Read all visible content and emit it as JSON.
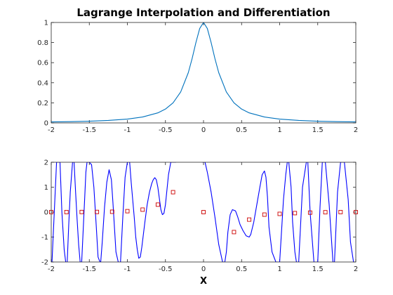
{
  "chart_data": [
    {
      "type": "line",
      "title": "Lagrange Interpolation and Differentiation",
      "xlabel": "",
      "ylabel": "",
      "xlim": [
        -2,
        2
      ],
      "ylim": [
        0,
        1
      ],
      "xticks": [
        -2,
        -1.5,
        -1,
        -0.5,
        0,
        0.5,
        1,
        1.5,
        2
      ],
      "xtick_labels": [
        "-2",
        "-1.5",
        "-1",
        "-0.5",
        "0",
        "0.5",
        "1",
        "1.5",
        "2"
      ],
      "yticks": [
        0,
        0.2,
        0.4,
        0.6,
        0.8,
        1
      ],
      "ytick_labels": [
        "0",
        "0.2",
        "0.4",
        "0.6",
        "0.8",
        "1"
      ],
      "series": [
        {
          "color": "#0072bd",
          "x": [
            -2,
            -1.75,
            -1.5,
            -1.25,
            -1,
            -0.8,
            -0.6,
            -0.5,
            -0.4,
            -0.3,
            -0.2,
            -0.15,
            -0.1,
            -0.05,
            0,
            0.05,
            0.1,
            0.15,
            0.2,
            0.3,
            0.4,
            0.5,
            0.6,
            0.8,
            1,
            1.25,
            1.5,
            1.75,
            2
          ],
          "y": [
            0.01,
            0.013,
            0.017,
            0.025,
            0.038,
            0.059,
            0.1,
            0.138,
            0.2,
            0.308,
            0.5,
            0.64,
            0.8,
            0.94,
            1,
            0.94,
            0.8,
            0.64,
            0.5,
            0.308,
            0.2,
            0.138,
            0.1,
            0.059,
            0.038,
            0.025,
            0.017,
            0.013,
            0.01
          ]
        }
      ],
      "grid": false
    },
    {
      "type": "line",
      "title": "",
      "xlabel": "X",
      "ylabel": "",
      "xlim": [
        -2,
        2
      ],
      "ylim": [
        -2,
        2
      ],
      "xticks": [
        -2,
        -1.5,
        -1,
        -0.5,
        0,
        0.5,
        1,
        1.5,
        2
      ],
      "xtick_labels": [
        "-2",
        "-1.5",
        "-1",
        "-0.5",
        "0",
        "0.5",
        "1",
        "1.5",
        "2"
      ],
      "yticks": [
        -2,
        -1,
        0,
        1,
        2
      ],
      "ytick_labels": [
        "-2",
        "-1",
        "0",
        "1",
        "2"
      ],
      "series": [
        {
          "color": "#0000ff",
          "style": "line",
          "x": [
            -1.99,
            -1.93,
            -1.885,
            -1.86,
            -1.83,
            -1.81,
            -1.79,
            -1.77,
            -1.75,
            -1.73,
            -1.72,
            -1.7,
            -1.68,
            -1.66,
            -1.64,
            -1.62,
            -1.6,
            -1.58,
            -1.56,
            -1.545,
            -1.53,
            -1.5,
            -1.47,
            -1.44,
            -1.41,
            -1.385,
            -1.36,
            -1.35,
            -1.33,
            -1.3,
            -1.27,
            -1.24,
            -1.21,
            -1.19,
            -1.17,
            -1.15,
            -1.12,
            -1.09,
            -1.06,
            -1.03,
            -1.0,
            -0.97,
            -0.95,
            -0.93,
            -0.91,
            -0.89,
            -0.87,
            -0.85,
            -0.83,
            -0.81,
            -0.79,
            -0.77,
            -0.74,
            -0.71,
            -0.68,
            -0.66,
            -0.64,
            -0.62,
            -0.6,
            -0.58,
            -0.56,
            -0.54,
            -0.52,
            -0.5,
            -0.48,
            -0.46,
            -0.43,
            -0.41,
            -0.4,
            -0.38,
            -0.36
          ],
          "y": [
            -2,
            2,
            2,
            0,
            -1.5,
            -2,
            -2,
            -0.5,
            0.8,
            1.6,
            2,
            2,
            0.8,
            -0.3,
            -1.3,
            -2,
            -2,
            -0.7,
            0.6,
            1.6,
            2,
            2,
            1.9,
            1.0,
            -0.5,
            -1.8,
            -2,
            -2,
            -1.2,
            0.2,
            1.2,
            1.7,
            1.3,
            0.4,
            -0.6,
            -1.6,
            -2,
            -2,
            -0.2,
            1.4,
            2,
            2,
            1.2,
            0.5,
            -0.2,
            -1.0,
            -1.5,
            -1.85,
            -1.8,
            -1.4,
            -0.9,
            -0.4,
            0.3,
            0.8,
            1.15,
            1.3,
            1.38,
            1.3,
            1.0,
            0.55,
            0.1,
            -0.1,
            -0.05,
            0.3,
            0.9,
            1.5,
            2,
            2,
            2,
            2,
            2
          ]
        },
        {
          "color": "#0000ff",
          "style": "line",
          "x": [
            -0.02,
            0.0,
            0.02,
            0.05,
            0.1,
            0.15,
            0.2,
            0.25,
            0.28,
            0.3,
            0.32,
            0.35,
            0.38,
            0.42,
            0.45,
            0.48,
            0.52,
            0.56,
            0.6,
            0.62,
            0.66,
            0.7,
            0.74,
            0.77,
            0.8,
            0.82,
            0.84,
            0.86,
            0.9,
            0.95,
            1.0,
            1.02,
            1.05,
            1.08,
            1.1,
            1.12,
            1.15,
            1.17,
            1.2,
            1.22,
            1.25,
            1.3,
            1.35,
            1.37,
            1.4,
            1.45,
            1.5,
            1.53,
            1.56,
            1.6,
            1.65,
            1.7,
            1.72,
            1.76,
            1.8,
            1.85,
            1.9,
            1.93,
            1.97
          ],
          "y": [
            2,
            2,
            2,
            1.6,
            0.8,
            -0.2,
            -1.3,
            -2,
            -2,
            -1.6,
            -0.8,
            -0.1,
            0.1,
            0.05,
            -0.2,
            -0.5,
            -0.75,
            -0.95,
            -1.0,
            -0.9,
            -0.4,
            0.3,
            1.0,
            1.5,
            1.65,
            1.4,
            0.6,
            -0.6,
            -1.6,
            -2,
            -2,
            -1.0,
            0.5,
            1.5,
            2,
            2,
            1.0,
            -0.4,
            -1.6,
            -2,
            -2,
            1.0,
            2,
            2,
            0.0,
            -2,
            -2,
            0.2,
            2,
            2,
            0.3,
            -2,
            -2,
            0.8,
            2,
            2,
            0.5,
            -1.2,
            -2
          ]
        },
        {
          "color": "#cc0000",
          "style": "markers",
          "marker": "square",
          "x": [
            -2,
            -1.8,
            -1.6,
            -1.4,
            -1.2,
            -1,
            -0.8,
            -0.6,
            -0.4,
            0,
            0.4,
            0.6,
            0.8,
            1,
            1.2,
            1.4,
            1.6,
            1.8,
            2
          ],
          "y": [
            0.002,
            0.002,
            0.005,
            0.007,
            0.015,
            0.038,
            0.1,
            0.3,
            0.8,
            0,
            -0.8,
            -0.3,
            -0.1,
            -0.07,
            -0.04,
            -0.02,
            -0.005,
            0.002,
            0.0
          ]
        }
      ],
      "grid": false
    }
  ]
}
